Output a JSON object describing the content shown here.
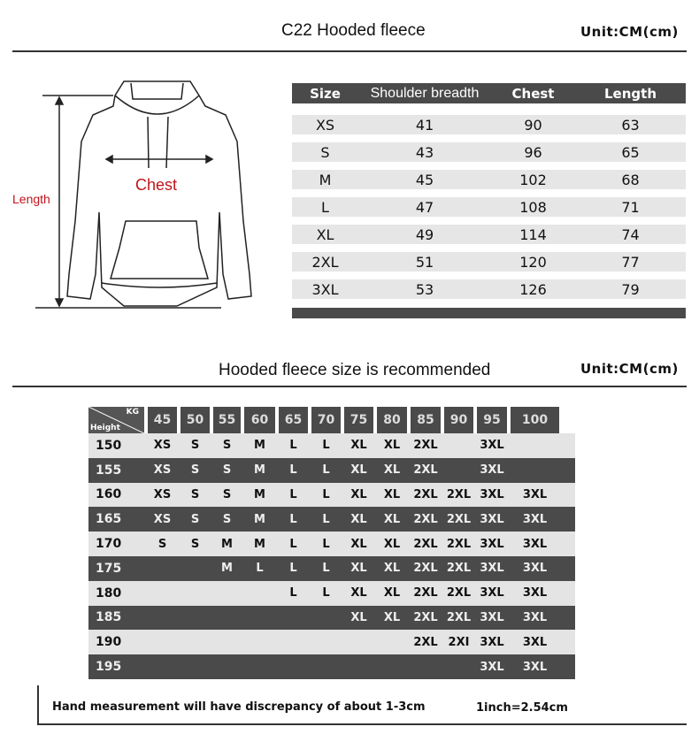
{
  "size_chart": {
    "title": "C22 Hooded fleece",
    "unit": "Unit:CM(cm)",
    "diagram": {
      "chest_label": "Chest",
      "length_label": "Length",
      "label_color": "#c0141c"
    },
    "headers": [
      "Size",
      "Shoulder breadth",
      "Chest",
      "Length"
    ],
    "rows": [
      [
        "XS",
        "41",
        "90",
        "63"
      ],
      [
        "S",
        "43",
        "96",
        "65"
      ],
      [
        "M",
        "45",
        "102",
        "68"
      ],
      [
        "L",
        "47",
        "108",
        "71"
      ],
      [
        "XL",
        "49",
        "114",
        "74"
      ],
      [
        "2XL",
        "51",
        "120",
        "77"
      ],
      [
        "3XL",
        "53",
        "126",
        "79"
      ]
    ]
  },
  "recommendation": {
    "title": "Hooded fleece size is recommended",
    "unit": "Unit:CM(cm)",
    "corner_top": "KG",
    "corner_bottom": "Height",
    "weights": [
      "45",
      "50",
      "55",
      "60",
      "65",
      "70",
      "75",
      "80",
      "85",
      "90",
      "95",
      "100"
    ],
    "rows": [
      {
        "height": "150",
        "sizes": [
          "XS",
          "S",
          "S",
          "M",
          "L",
          "L",
          "XL",
          "XL",
          "2XL",
          "",
          "3XL",
          ""
        ]
      },
      {
        "height": "155",
        "sizes": [
          "XS",
          "S",
          "S",
          "M",
          "L",
          "L",
          "XL",
          "XL",
          "2XL",
          "",
          "3XL",
          ""
        ]
      },
      {
        "height": "160",
        "sizes": [
          "XS",
          "S",
          "S",
          "M",
          "L",
          "L",
          "XL",
          "XL",
          "2XL",
          "2XL",
          "3XL",
          "3XL"
        ]
      },
      {
        "height": "165",
        "sizes": [
          "XS",
          "S",
          "S",
          "M",
          "L",
          "L",
          "XL",
          "XL",
          "2XL",
          "2XL",
          "3XL",
          "3XL"
        ]
      },
      {
        "height": "170",
        "sizes": [
          "S",
          "S",
          "M",
          "M",
          "L",
          "L",
          "XL",
          "XL",
          "2XL",
          "2XL",
          "3XL",
          "3XL"
        ]
      },
      {
        "height": "175",
        "sizes": [
          "",
          "",
          "M",
          "L",
          "L",
          "L",
          "XL",
          "XL",
          "2XL",
          "2XL",
          "3XL",
          "3XL"
        ]
      },
      {
        "height": "180",
        "sizes": [
          "",
          "",
          "",
          "",
          "L",
          "L",
          "XL",
          "XL",
          "2XL",
          "2XL",
          "3XL",
          "3XL"
        ]
      },
      {
        "height": "185",
        "sizes": [
          "",
          "",
          "",
          "",
          "",
          "",
          "XL",
          "XL",
          "2XL",
          "2XL",
          "3XL",
          "3XL"
        ]
      },
      {
        "height": "190",
        "sizes": [
          "",
          "",
          "",
          "",
          "",
          "",
          "",
          "",
          "2XL",
          "2XI",
          "3XL",
          "3XL"
        ]
      },
      {
        "height": "195",
        "sizes": [
          "",
          "",
          "",
          "",
          "",
          "",
          "",
          "",
          "",
          "",
          "3XL",
          "3XL"
        ]
      }
    ]
  },
  "footer": {
    "note": "Hand measurement will have discrepancy of about  1-3cm",
    "conversion": "1inch=2.54cm"
  }
}
